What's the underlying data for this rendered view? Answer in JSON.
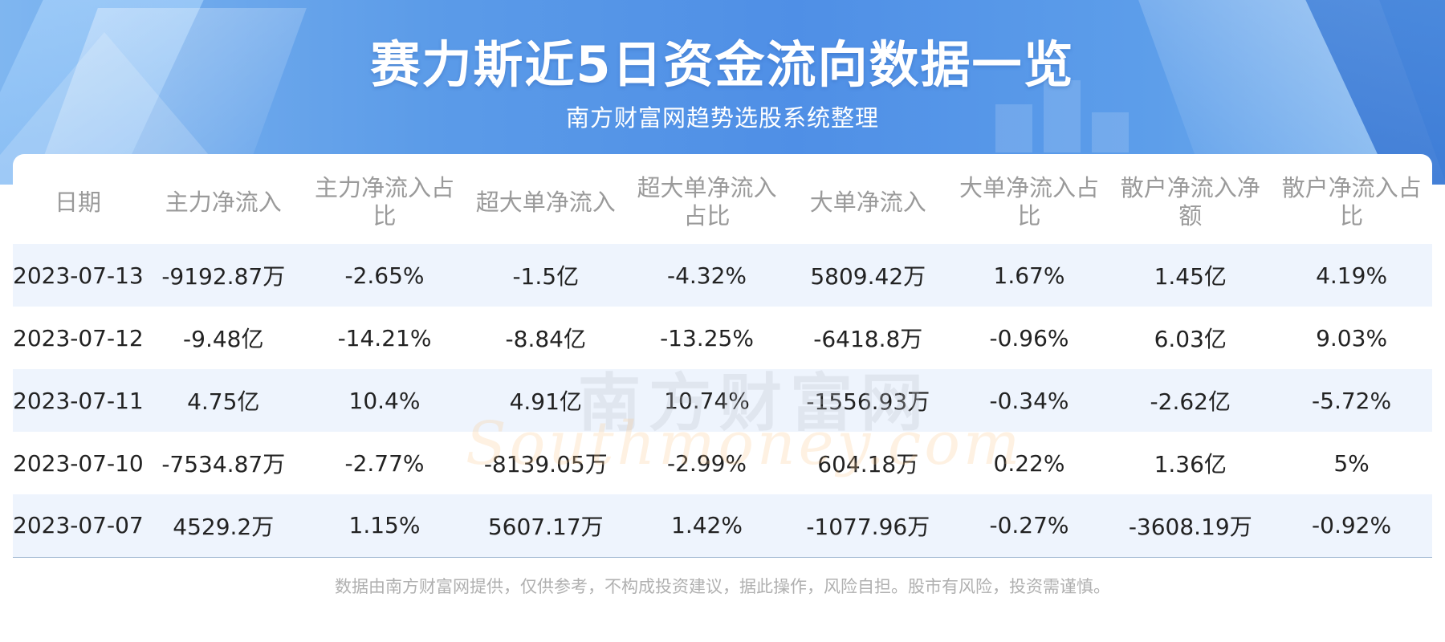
{
  "header": {
    "title": "赛力斯近5日资金流向数据一览",
    "subtitle": "南方财富网趋势选股系统整理"
  },
  "table": {
    "columns": [
      "日期",
      "主力净流入",
      "主力净流入占比",
      "超大单净流入",
      "超大单净流入占比",
      "大单净流入",
      "大单净流入占比",
      "散户净流入净额",
      "散户净流入占比"
    ],
    "rows": [
      [
        "2023-07-13",
        "-9192.87万",
        "-2.65%",
        "-1.5亿",
        "-4.32%",
        "5809.42万",
        "1.67%",
        "1.45亿",
        "4.19%"
      ],
      [
        "2023-07-12",
        "-9.48亿",
        "-14.21%",
        "-8.84亿",
        "-13.25%",
        "-6418.8万",
        "-0.96%",
        "6.03亿",
        "9.03%"
      ],
      [
        "2023-07-11",
        "4.75亿",
        "10.4%",
        "4.91亿",
        "10.74%",
        "-1556.93万",
        "-0.34%",
        "-2.62亿",
        "-5.72%"
      ],
      [
        "2023-07-10",
        "-7534.87万",
        "-2.77%",
        "-8139.05万",
        "-2.99%",
        "604.18万",
        "0.22%",
        "1.36亿",
        "5%"
      ],
      [
        "2023-07-07",
        "4529.2万",
        "1.15%",
        "5607.17万",
        "1.42%",
        "-1077.96万",
        "-0.27%",
        "-3608.19万",
        "-0.92%"
      ]
    ]
  },
  "watermark": {
    "cn": "南方财富网",
    "en": "Southmoney.com"
  },
  "footer": {
    "disclaimer": "数据由南方财富网提供，仅供参考，不构成投资建议，据此操作，风险自担。股市有风险，投资需谨慎。"
  },
  "colors": {
    "banner_blue": "#4f8fe6",
    "row_stripe": "#eef4fd",
    "header_text": "#9a9a9a",
    "body_text": "#222222"
  }
}
